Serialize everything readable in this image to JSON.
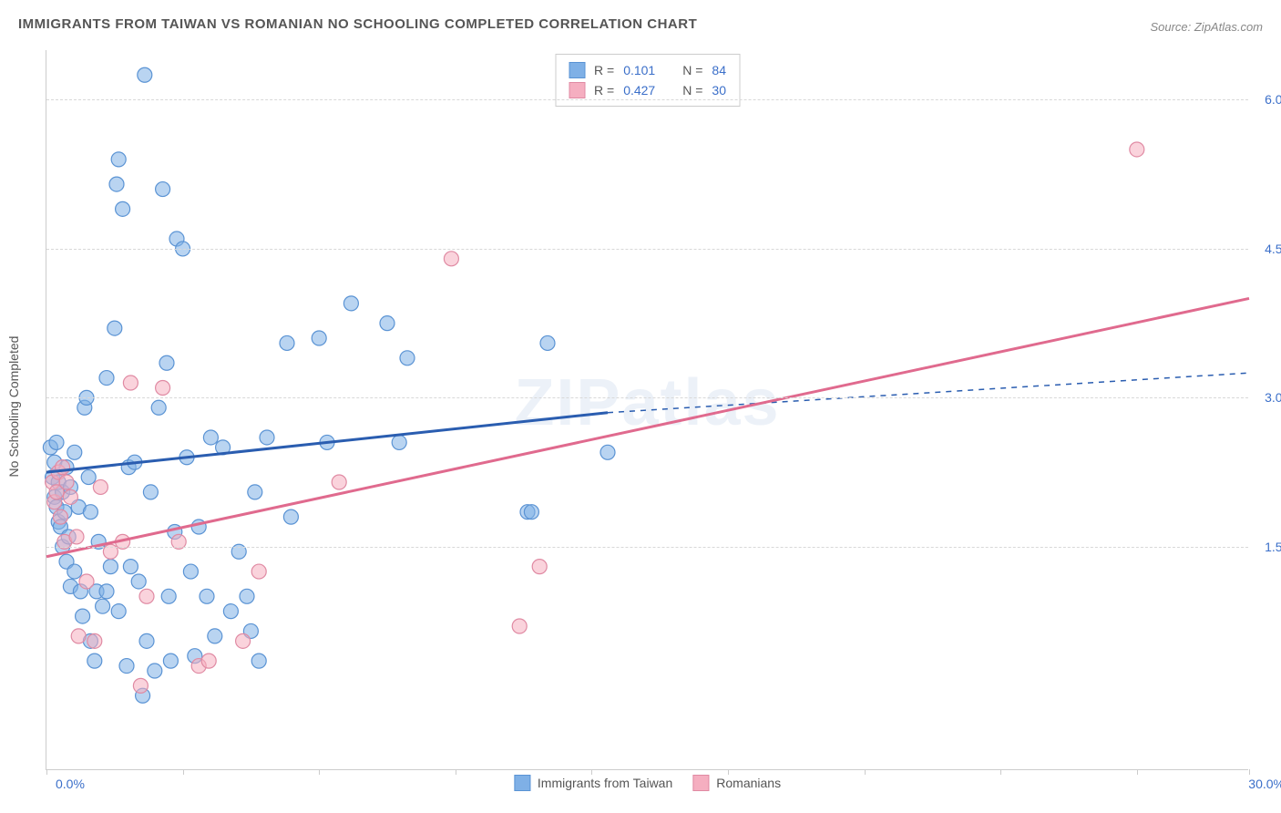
{
  "title": "IMMIGRANTS FROM TAIWAN VS ROMANIAN NO SCHOOLING COMPLETED CORRELATION CHART",
  "source": "Source: ZipAtlas.com",
  "watermark": "ZIPatlas",
  "ylabel": "No Schooling Completed",
  "chart": {
    "type": "scatter",
    "xlim": [
      0,
      30
    ],
    "ylim": [
      -0.75,
      6.5
    ],
    "x_axis_labels": {
      "left": "0.0%",
      "right": "30.0%"
    },
    "y_ticks": [
      {
        "value": 1.5,
        "label": "1.5%"
      },
      {
        "value": 3.0,
        "label": "3.0%"
      },
      {
        "value": 4.5,
        "label": "4.5%"
      },
      {
        "value": 6.0,
        "label": "6.0%"
      }
    ],
    "x_tick_positions": [
      0,
      3.4,
      6.8,
      10.2,
      13.6,
      17.0,
      20.4,
      23.8,
      27.2,
      30.0
    ],
    "grid_color": "#d8d8d8",
    "axis_color": "#cccccc",
    "background_color": "#ffffff",
    "marker_radius": 8,
    "marker_opacity": 0.55,
    "series": [
      {
        "id": "taiwan",
        "label": "Immigrants from Taiwan",
        "color": "#7fb0e6",
        "stroke": "#5a93d4",
        "R": "0.101",
        "N": "84",
        "points": [
          [
            0.1,
            2.5
          ],
          [
            0.15,
            2.2
          ],
          [
            0.2,
            2.0
          ],
          [
            0.2,
            2.35
          ],
          [
            0.25,
            1.9
          ],
          [
            0.25,
            2.55
          ],
          [
            0.3,
            1.75
          ],
          [
            0.3,
            2.15
          ],
          [
            0.35,
            1.7
          ],
          [
            0.4,
            2.05
          ],
          [
            0.4,
            1.5
          ],
          [
            0.45,
            1.85
          ],
          [
            0.5,
            2.3
          ],
          [
            0.5,
            1.35
          ],
          [
            0.55,
            1.6
          ],
          [
            0.6,
            2.1
          ],
          [
            0.6,
            1.1
          ],
          [
            0.7,
            1.25
          ],
          [
            0.7,
            2.45
          ],
          [
            0.8,
            1.9
          ],
          [
            0.85,
            1.05
          ],
          [
            0.9,
            0.8
          ],
          [
            0.95,
            2.9
          ],
          [
            1.0,
            3.0
          ],
          [
            1.05,
            2.2
          ],
          [
            1.1,
            0.55
          ],
          [
            1.1,
            1.85
          ],
          [
            1.2,
            0.35
          ],
          [
            1.25,
            1.05
          ],
          [
            1.3,
            1.55
          ],
          [
            1.4,
            0.9
          ],
          [
            1.5,
            1.05
          ],
          [
            1.5,
            3.2
          ],
          [
            1.6,
            1.3
          ],
          [
            1.7,
            3.7
          ],
          [
            1.75,
            5.15
          ],
          [
            1.8,
            5.4
          ],
          [
            1.8,
            0.85
          ],
          [
            1.9,
            4.9
          ],
          [
            2.0,
            0.3
          ],
          [
            2.05,
            2.3
          ],
          [
            2.1,
            1.3
          ],
          [
            2.2,
            2.35
          ],
          [
            2.3,
            1.15
          ],
          [
            2.4,
            0.0
          ],
          [
            2.45,
            6.25
          ],
          [
            2.5,
            0.55
          ],
          [
            2.6,
            2.05
          ],
          [
            2.7,
            0.25
          ],
          [
            2.8,
            2.9
          ],
          [
            2.9,
            5.1
          ],
          [
            3.0,
            3.35
          ],
          [
            3.05,
            1.0
          ],
          [
            3.1,
            0.35
          ],
          [
            3.2,
            1.65
          ],
          [
            3.25,
            4.6
          ],
          [
            3.4,
            4.5
          ],
          [
            3.5,
            2.4
          ],
          [
            3.6,
            1.25
          ],
          [
            3.7,
            0.4
          ],
          [
            3.8,
            1.7
          ],
          [
            4.0,
            1.0
          ],
          [
            4.1,
            2.6
          ],
          [
            4.2,
            0.6
          ],
          [
            4.4,
            2.5
          ],
          [
            4.6,
            0.85
          ],
          [
            4.8,
            1.45
          ],
          [
            5.0,
            1.0
          ],
          [
            5.1,
            0.65
          ],
          [
            5.2,
            2.05
          ],
          [
            5.3,
            0.35
          ],
          [
            5.5,
            2.6
          ],
          [
            6.0,
            3.55
          ],
          [
            6.1,
            1.8
          ],
          [
            6.8,
            3.6
          ],
          [
            7.0,
            2.55
          ],
          [
            7.6,
            3.95
          ],
          [
            8.5,
            3.75
          ],
          [
            8.8,
            2.55
          ],
          [
            9.0,
            3.4
          ],
          [
            12.0,
            1.85
          ],
          [
            12.1,
            1.85
          ],
          [
            12.5,
            3.55
          ],
          [
            14.0,
            2.45
          ]
        ],
        "trend": {
          "solid_from": [
            0,
            2.25
          ],
          "solid_to": [
            14,
            2.85
          ],
          "dashed_to": [
            30,
            3.25
          ],
          "width": 3
        }
      },
      {
        "id": "romanians",
        "label": "Romanians",
        "color": "#f5aec0",
        "stroke": "#e08aa3",
        "R": "0.427",
        "N": "30",
        "points": [
          [
            0.15,
            2.15
          ],
          [
            0.2,
            1.95
          ],
          [
            0.25,
            2.05
          ],
          [
            0.3,
            2.25
          ],
          [
            0.35,
            1.8
          ],
          [
            0.4,
            2.3
          ],
          [
            0.45,
            1.55
          ],
          [
            0.5,
            2.15
          ],
          [
            0.6,
            2.0
          ],
          [
            0.75,
            1.6
          ],
          [
            0.8,
            0.6
          ],
          [
            1.0,
            1.15
          ],
          [
            1.2,
            0.55
          ],
          [
            1.35,
            2.1
          ],
          [
            1.6,
            1.45
          ],
          [
            1.9,
            1.55
          ],
          [
            2.1,
            3.15
          ],
          [
            2.35,
            0.1
          ],
          [
            2.5,
            1.0
          ],
          [
            2.9,
            3.1
          ],
          [
            3.3,
            1.55
          ],
          [
            3.8,
            0.3
          ],
          [
            4.05,
            0.35
          ],
          [
            4.9,
            0.55
          ],
          [
            5.3,
            1.25
          ],
          [
            7.3,
            2.15
          ],
          [
            10.1,
            4.4
          ],
          [
            11.8,
            0.7
          ],
          [
            12.3,
            1.3
          ],
          [
            27.2,
            5.5
          ]
        ],
        "trend": {
          "solid_from": [
            0,
            1.4
          ],
          "solid_to": [
            30,
            4.0
          ],
          "width": 3
        }
      }
    ],
    "legend_top": [
      {
        "series": "taiwan",
        "r_label": "R =",
        "n_label": "N ="
      },
      {
        "series": "romanians",
        "r_label": "R =",
        "n_label": "N ="
      }
    ]
  }
}
